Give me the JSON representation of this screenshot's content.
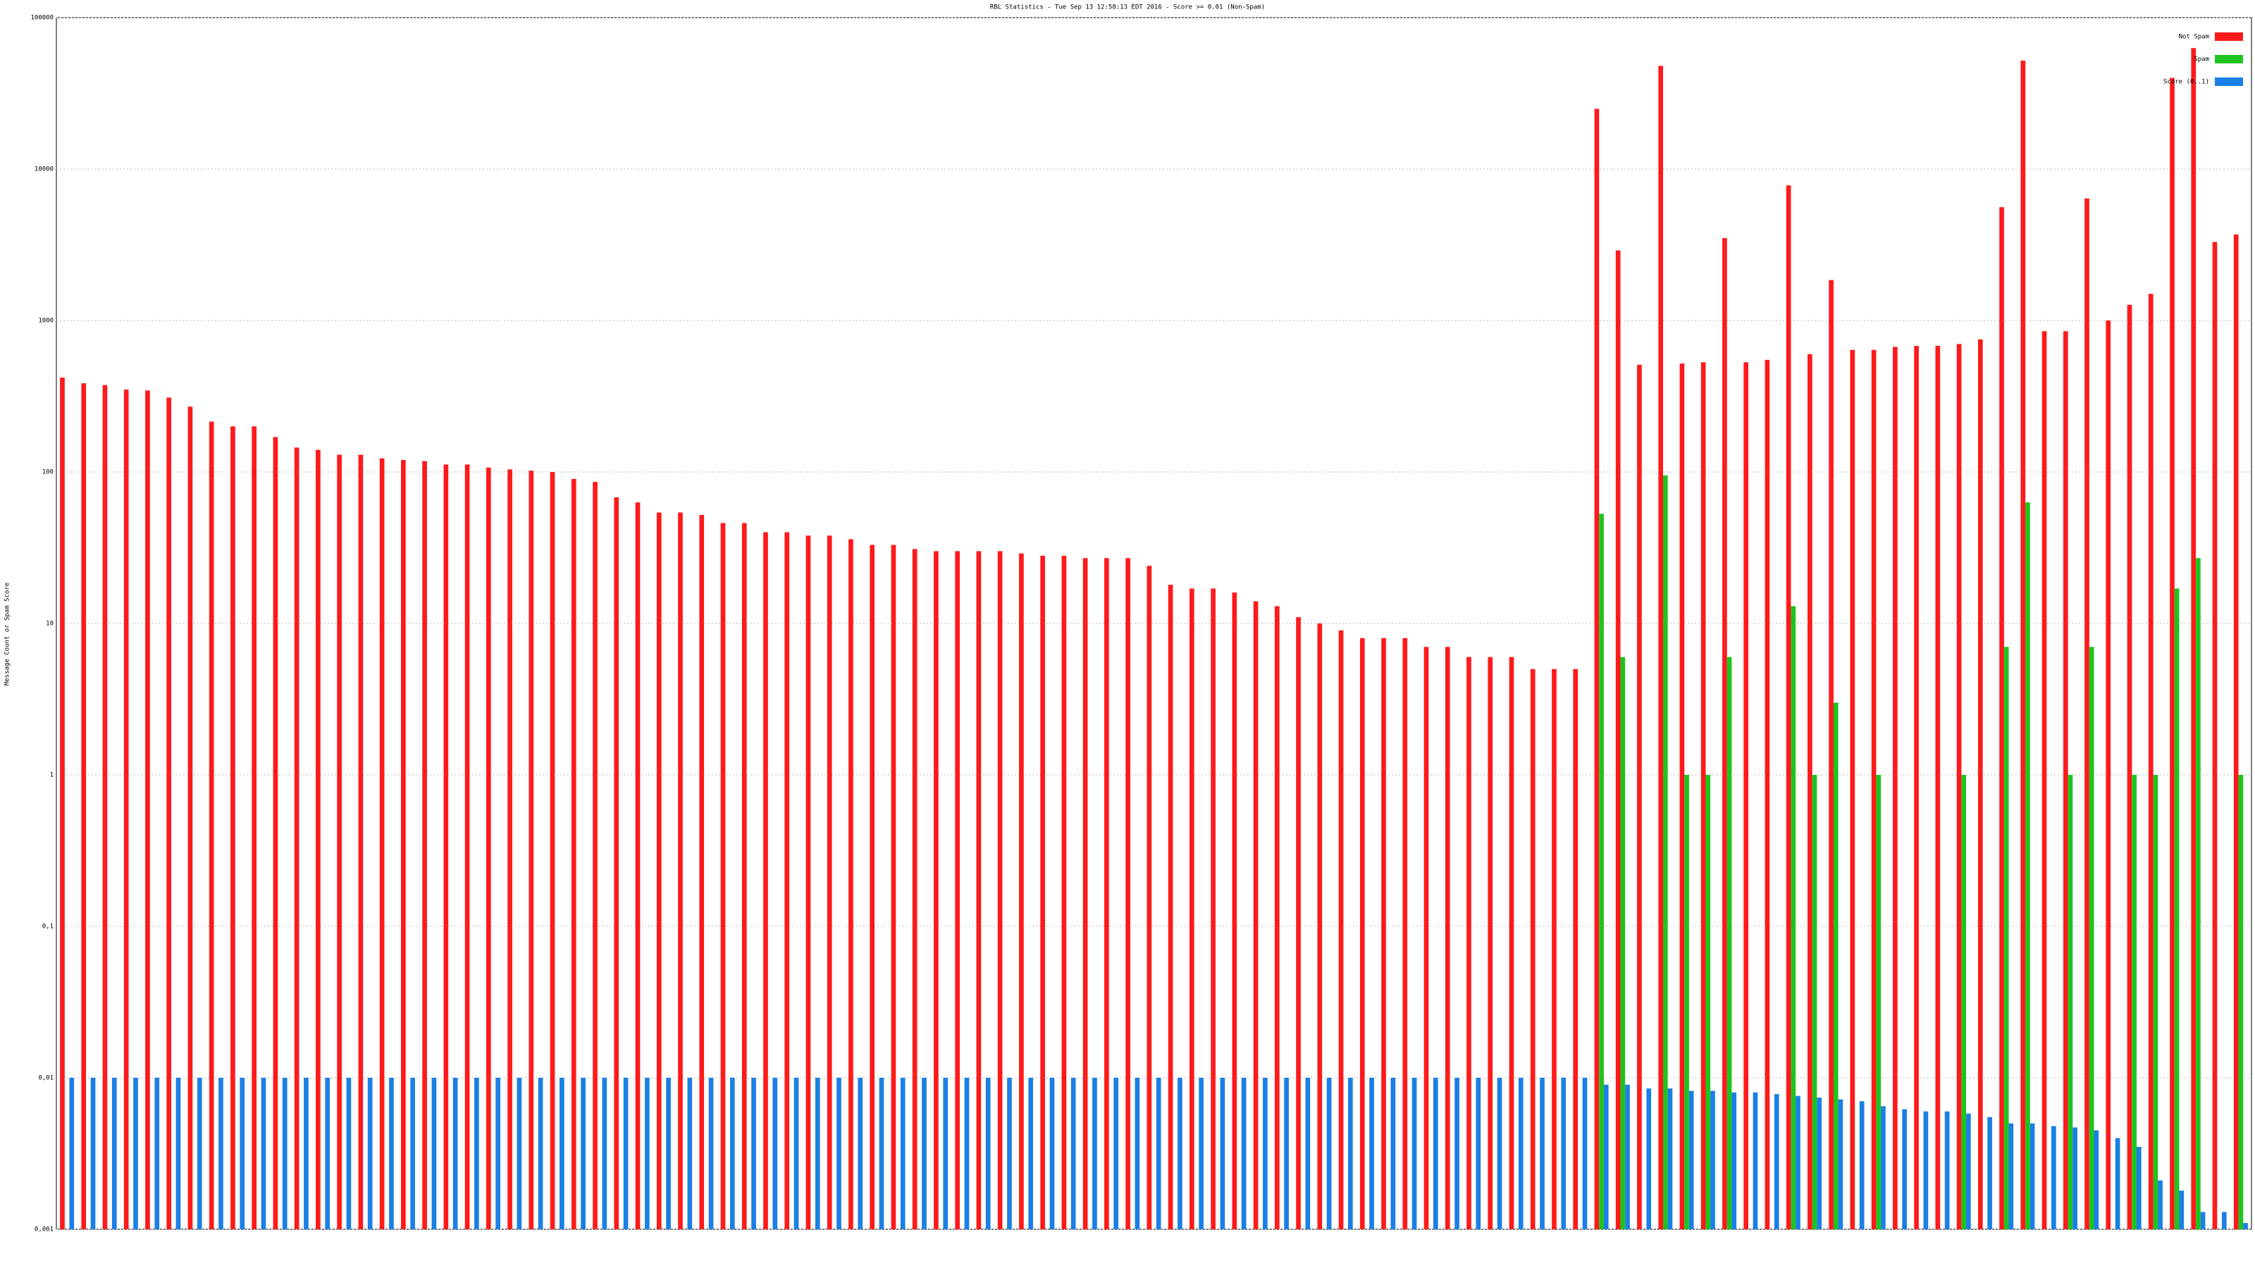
{
  "chart_data": {
    "type": "bar",
    "title": "RBL Statistics - Tue Sep 13 12:58:13 EDT 2016 - Score >= 0.01 (Non-Spam)",
    "y_label": "Message Count or Spam Score",
    "log_scale": true,
    "grid": true,
    "legend": "top-right",
    "categories": [
      null,
      null,
      null,
      null,
      null,
      null,
      null,
      null,
      null,
      null,
      null,
      null,
      null,
      null,
      null,
      null,
      null,
      null,
      null,
      null,
      null,
      null,
      null,
      null,
      null,
      null,
      null,
      null,
      null,
      null,
      null,
      null,
      null,
      null,
      null,
      null,
      null,
      null,
      null,
      null,
      null,
      null,
      null,
      null,
      null,
      null,
      null,
      null,
      null,
      null,
      null,
      null,
      null,
      null,
      null,
      null,
      null,
      null,
      null,
      null,
      null,
      null,
      null,
      null,
      null,
      null,
      null,
      null,
      null,
      null,
      null,
      null,
      null,
      null,
      null,
      null,
      null,
      null,
      null,
      null,
      null,
      null,
      null,
      null,
      null,
      null,
      null,
      null,
      null,
      null,
      null,
      null,
      null,
      null,
      null,
      null,
      null,
      null,
      null,
      null,
      null,
      null,
      null
    ],
    "ylim": [
      0.001,
      100000
    ],
    "yticks": [
      {
        "value": 0.001,
        "label": "0,001"
      },
      {
        "value": 0.01,
        "label": "0,01"
      },
      {
        "value": 0.1,
        "label": "0,1"
      },
      1,
      10,
      100,
      1000,
      10000,
      100000
    ],
    "series": [
      {
        "name": "Not Spam",
        "color": "#ff1a1a",
        "values": [
          420,
          385,
          375,
          350,
          345,
          310,
          270,
          215,
          200,
          200,
          170,
          145,
          140,
          130,
          130,
          123,
          120,
          118,
          112,
          112,
          107,
          104,
          102,
          100,
          90,
          86,
          68,
          63,
          54,
          54,
          52,
          46,
          46,
          40,
          40,
          38,
          38,
          36,
          33,
          33,
          31,
          30,
          30,
          30,
          30,
          29,
          28,
          28,
          27,
          27,
          27,
          24,
          18,
          17,
          17,
          16,
          14,
          13,
          11,
          10,
          9,
          8,
          8,
          8,
          7,
          7,
          6,
          6,
          6,
          5,
          5,
          5,
          25000,
          2900,
          510,
          48000,
          520,
          530,
          3500,
          530,
          550,
          7800,
          600,
          1850,
          640,
          640,
          670,
          680,
          680,
          700,
          750,
          5600,
          52000,
          850,
          850,
          6400,
          1000,
          1270,
          1500,
          40000,
          63000,
          3300,
          3700
        ]
      },
      {
        "name": "Spam",
        "color": "#1ec41e",
        "values": [
          null,
          null,
          null,
          null,
          null,
          null,
          null,
          null,
          null,
          null,
          null,
          null,
          null,
          null,
          null,
          null,
          null,
          null,
          null,
          null,
          null,
          null,
          null,
          null,
          null,
          null,
          null,
          null,
          null,
          null,
          null,
          null,
          null,
          null,
          null,
          null,
          null,
          null,
          null,
          null,
          null,
          null,
          null,
          null,
          null,
          null,
          null,
          null,
          null,
          null,
          null,
          null,
          null,
          null,
          null,
          null,
          null,
          null,
          null,
          null,
          null,
          null,
          null,
          null,
          null,
          null,
          null,
          null,
          null,
          null,
          null,
          null,
          53,
          6,
          null,
          95,
          1,
          1,
          6,
          null,
          null,
          13,
          1,
          3,
          null,
          1,
          null,
          null,
          null,
          1,
          null,
          7,
          63,
          null,
          1,
          7,
          null,
          1,
          1,
          17,
          27,
          null,
          1
        ]
      },
      {
        "name": "Score (0..1)",
        "color": "#1a7fe6",
        "values": [
          0.01,
          0.01,
          0.01,
          0.01,
          0.01,
          0.01,
          0.01,
          0.01,
          0.01,
          0.01,
          0.01,
          0.01,
          0.01,
          0.01,
          0.01,
          0.01,
          0.01,
          0.01,
          0.01,
          0.01,
          0.01,
          0.01,
          0.01,
          0.01,
          0.01,
          0.01,
          0.01,
          0.01,
          0.01,
          0.01,
          0.01,
          0.01,
          0.01,
          0.01,
          0.01,
          0.01,
          0.01,
          0.01,
          0.01,
          0.01,
          0.01,
          0.01,
          0.01,
          0.01,
          0.01,
          0.01,
          0.01,
          0.01,
          0.01,
          0.01,
          0.01,
          0.01,
          0.01,
          0.01,
          0.01,
          0.01,
          0.01,
          0.01,
          0.01,
          0.01,
          0.01,
          0.01,
          0.01,
          0.01,
          0.01,
          0.01,
          0.01,
          0.01,
          0.01,
          0.01,
          0.01,
          0.01,
          0.009,
          0.009,
          0.0085,
          0.0085,
          0.0082,
          0.0082,
          0.008,
          0.008,
          0.0078,
          0.0076,
          0.0074,
          0.0072,
          0.007,
          0.0065,
          0.0062,
          0.006,
          0.006,
          0.0058,
          0.0055,
          0.005,
          0.005,
          0.0048,
          0.0047,
          0.0045,
          0.004,
          0.0035,
          0.0021,
          0.0018,
          0.0013,
          0.0013,
          0.0011
        ]
      }
    ]
  }
}
